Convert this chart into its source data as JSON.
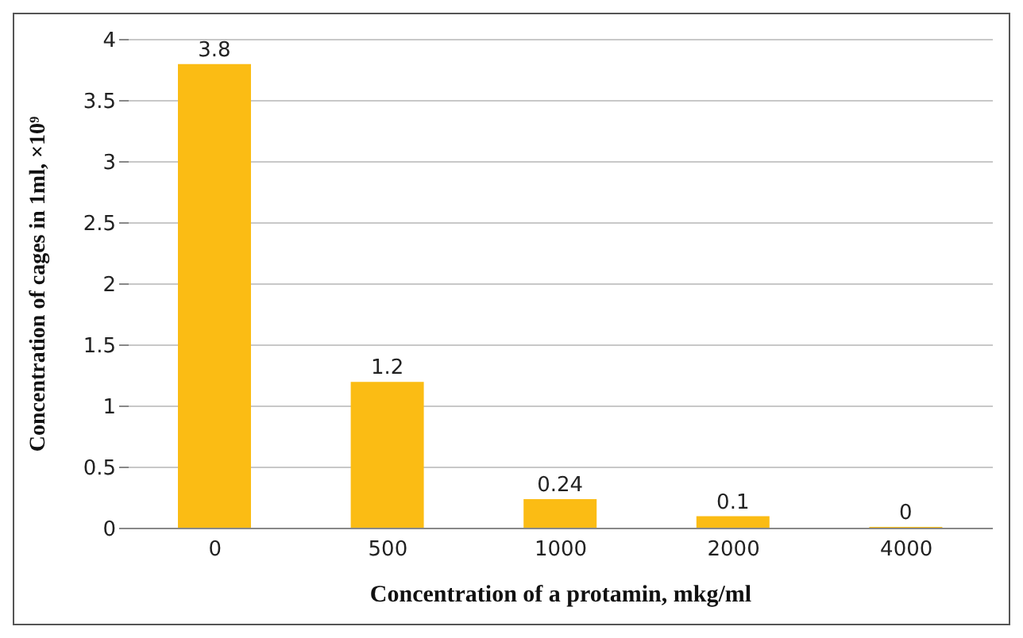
{
  "chart_data": {
    "type": "bar",
    "xlabel": "Concentration of a protamin, mkg/ml",
    "ylabel": "Concentration of cages in 1ml, ×10⁹",
    "categories": [
      "0",
      "500",
      "1000",
      "2000",
      "4000"
    ],
    "values": [
      3.8,
      1.2,
      0.24,
      0.1,
      0
    ],
    "color": "#fbbc14",
    "ylim": [
      0,
      4
    ],
    "yticks": [
      0,
      0.5,
      1,
      1.5,
      2,
      2.5,
      3,
      3.5,
      4
    ],
    "grid": "y",
    "data_labels": true
  }
}
